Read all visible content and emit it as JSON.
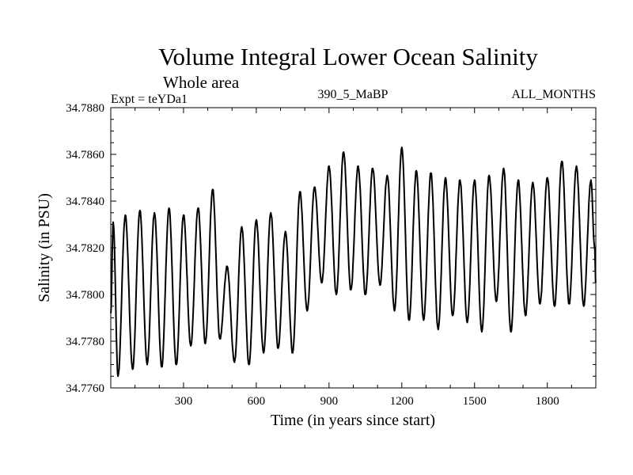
{
  "chart_data": {
    "type": "line",
    "title": "Volume Integral Lower Ocean Salinity",
    "subtitle": "Whole area",
    "annotations": {
      "left": "Expt = teYDa1",
      "center": "390_5_MaBP",
      "right": "ALL_MONTHS"
    },
    "xlabel": "Time (in years since start)",
    "ylabel": "Salinity (in PSU)",
    "xlim": [
      0,
      2000
    ],
    "ylim": [
      34.776,
      34.788
    ],
    "x_ticks": [
      300,
      600,
      900,
      1200,
      1500,
      1800
    ],
    "x_tick_labels": [
      "300",
      "600",
      "900",
      "1200",
      "1500",
      "1800"
    ],
    "y_ticks": [
      34.776,
      34.778,
      34.78,
      34.782,
      34.784,
      34.786,
      34.788
    ],
    "y_tick_labels": [
      "34.7760",
      "34.7780",
      "34.7800",
      "34.7820",
      "34.7840",
      "34.7860",
      "34.7880"
    ],
    "grid": false,
    "series": [
      {
        "name": "salinity",
        "color": "#000000",
        "x": [
          0,
          10,
          30,
          60,
          90,
          120,
          150,
          180,
          210,
          240,
          270,
          300,
          330,
          360,
          390,
          420,
          450,
          480,
          510,
          540,
          570,
          600,
          630,
          660,
          690,
          720,
          750,
          780,
          810,
          840,
          870,
          900,
          930,
          960,
          990,
          1020,
          1050,
          1080,
          1110,
          1140,
          1170,
          1200,
          1230,
          1260,
          1290,
          1320,
          1350,
          1380,
          1410,
          1440,
          1470,
          1500,
          1530,
          1560,
          1590,
          1620,
          1650,
          1680,
          1710,
          1740,
          1770,
          1800,
          1830,
          1860,
          1890,
          1920,
          1950,
          1980,
          1995,
          2000
        ],
        "values": [
          34.7792,
          34.7831,
          34.7765,
          34.7834,
          34.7768,
          34.7836,
          34.777,
          34.7835,
          34.7769,
          34.7837,
          34.777,
          34.7834,
          34.7778,
          34.7837,
          34.7779,
          34.7845,
          34.7781,
          34.7812,
          34.7771,
          34.7829,
          34.777,
          34.7832,
          34.7775,
          34.7835,
          34.7777,
          34.7827,
          34.7775,
          34.7844,
          34.7793,
          34.7846,
          34.7805,
          34.7855,
          34.78,
          34.7861,
          34.7802,
          34.7855,
          34.78,
          34.7854,
          34.7804,
          34.7851,
          34.7793,
          34.7863,
          34.7789,
          34.7853,
          34.7789,
          34.7852,
          34.7785,
          34.785,
          34.7791,
          34.7849,
          34.7788,
          34.7849,
          34.7784,
          34.7851,
          34.7797,
          34.7854,
          34.7784,
          34.7849,
          34.7791,
          34.7848,
          34.7796,
          34.785,
          34.7795,
          34.7857,
          34.7796,
          34.7855,
          34.7795,
          34.7849,
          34.782,
          34.7805
        ]
      }
    ]
  }
}
